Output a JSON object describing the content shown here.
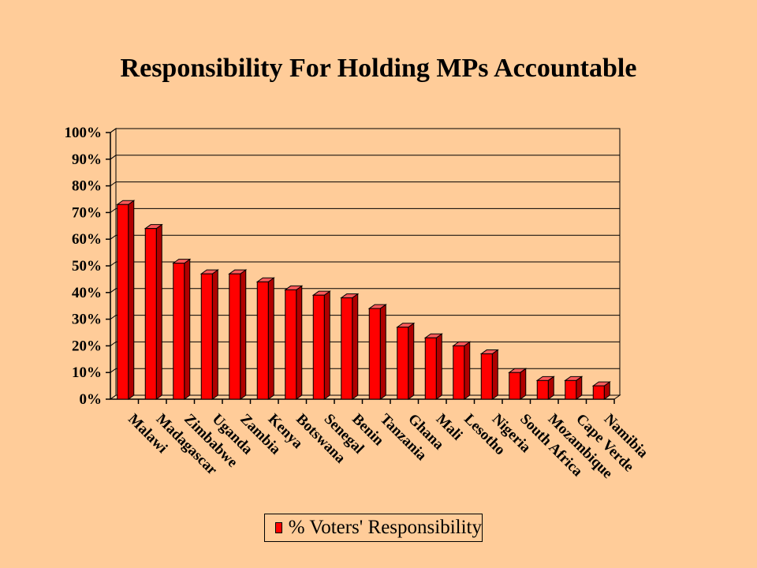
{
  "colors": {
    "background": "#FFCC99",
    "bar_front": "#FF0000",
    "bar_side": "#B00000",
    "bar_top": "#FF5A5A",
    "plot_fill": "#FFCC99",
    "axis": "#000000"
  },
  "chart_data": {
    "type": "bar",
    "title": "Responsibility For Holding MPs Accountable",
    "xlabel": "",
    "ylabel": "",
    "ylim": [
      0,
      100
    ],
    "y_ticks": [
      "0%",
      "10%",
      "20%",
      "30%",
      "40%",
      "50%",
      "60%",
      "70%",
      "80%",
      "90%",
      "100%"
    ],
    "grid": true,
    "legend_position": "bottom-center",
    "categories": [
      "Malawi",
      "Madagascar",
      "Zimbabwe",
      "Uganda",
      "Zambia",
      "Kenya",
      "Botswana",
      "Senegal",
      "Benin",
      "Tanzania",
      "Ghana",
      "Mali",
      "Lesotho",
      "Nigeria",
      "South Africa",
      "Mozambique",
      "Cape Verde",
      "Namibia"
    ],
    "series": [
      {
        "name": "% Voters' Responsibility",
        "values": [
          73,
          64,
          51,
          47,
          47,
          44,
          41,
          39,
          38,
          34,
          27,
          23,
          20,
          17,
          10,
          7,
          7,
          5
        ]
      }
    ]
  }
}
